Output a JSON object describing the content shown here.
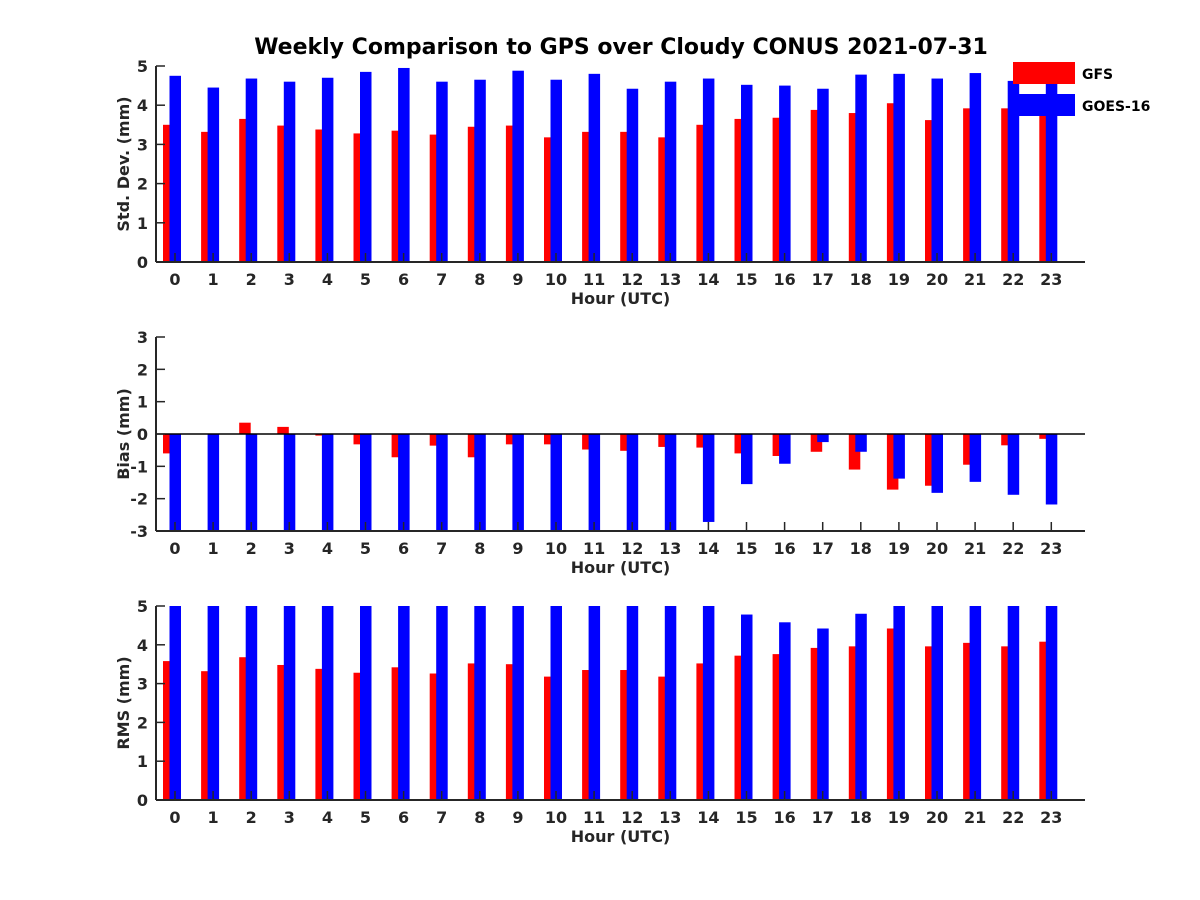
{
  "title": "Weekly Comparison to GPS over Cloudy CONUS 2021-07-31",
  "colors": {
    "GFS": "#ff0000",
    "GOES-16": "#0000ff",
    "axis": "#262626"
  },
  "legend": {
    "placement": "top-right",
    "entries": [
      "GFS",
      "GOES-16"
    ]
  },
  "chart_data": [
    {
      "type": "bar",
      "categories": [
        "0",
        "1",
        "2",
        "3",
        "4",
        "5",
        "6",
        "7",
        "8",
        "9",
        "10",
        "11",
        "12",
        "13",
        "14",
        "15",
        "16",
        "17",
        "18",
        "19",
        "20",
        "21",
        "22",
        "23"
      ],
      "xlabel": "Hour (UTC)",
      "ylabel": "Std. Dev. (mm)",
      "ylim": [
        0,
        5
      ],
      "yticks": [
        0,
        1,
        2,
        3,
        4,
        5
      ],
      "series": [
        {
          "name": "GFS",
          "values": [
            3.5,
            3.32,
            3.65,
            3.48,
            3.38,
            3.28,
            3.35,
            3.25,
            3.45,
            3.48,
            3.18,
            3.32,
            3.32,
            3.18,
            3.5,
            3.65,
            3.68,
            3.88,
            3.8,
            4.05,
            3.62,
            3.92,
            3.92,
            3.75
          ]
        },
        {
          "name": "GOES-16",
          "values": [
            4.75,
            4.45,
            4.68,
            4.6,
            4.7,
            4.85,
            4.95,
            4.6,
            4.65,
            4.88,
            4.65,
            4.8,
            4.42,
            4.6,
            4.68,
            4.52,
            4.5,
            4.42,
            4.78,
            4.8,
            4.68,
            4.82,
            4.62,
            4.72
          ]
        }
      ]
    },
    {
      "type": "bar",
      "categories": [
        "0",
        "1",
        "2",
        "3",
        "4",
        "5",
        "6",
        "7",
        "8",
        "9",
        "10",
        "11",
        "12",
        "13",
        "14",
        "15",
        "16",
        "17",
        "18",
        "19",
        "20",
        "21",
        "22",
        "23"
      ],
      "xlabel": "Hour (UTC)",
      "ylabel": "Bias (mm)",
      "ylim": [
        -3,
        3
      ],
      "yticks": [
        -3,
        -2,
        -1,
        0,
        1,
        2,
        3
      ],
      "series": [
        {
          "name": "GFS",
          "values": [
            -0.6,
            0,
            0.35,
            0.22,
            -0.05,
            -0.32,
            -0.72,
            -0.36,
            -0.72,
            -0.32,
            -0.32,
            -0.48,
            -0.52,
            -0.4,
            -0.42,
            -0.6,
            -0.68,
            -0.55,
            -1.1,
            -1.72,
            -1.6,
            -0.95,
            -0.35,
            -0.15
          ]
        },
        {
          "name": "GOES-16",
          "values": [
            -3,
            -3,
            -3,
            -3,
            -3,
            -3,
            -3,
            -3,
            -3,
            -3,
            -3,
            -3,
            -3,
            -3,
            -2.72,
            -1.55,
            -0.92,
            -0.25,
            -0.55,
            -1.38,
            -1.82,
            -1.48,
            -1.88,
            -2.18
          ]
        }
      ]
    },
    {
      "type": "bar",
      "categories": [
        "0",
        "1",
        "2",
        "3",
        "4",
        "5",
        "6",
        "7",
        "8",
        "9",
        "10",
        "11",
        "12",
        "13",
        "14",
        "15",
        "16",
        "17",
        "18",
        "19",
        "20",
        "21",
        "22",
        "23"
      ],
      "xlabel": "Hour (UTC)",
      "ylabel": "RMS (mm)",
      "ylim": [
        0,
        5
      ],
      "yticks": [
        0,
        1,
        2,
        3,
        4,
        5
      ],
      "series": [
        {
          "name": "GFS",
          "values": [
            3.58,
            3.32,
            3.68,
            3.48,
            3.38,
            3.28,
            3.42,
            3.26,
            3.52,
            3.5,
            3.18,
            3.35,
            3.35,
            3.18,
            3.52,
            3.72,
            3.76,
            3.92,
            3.96,
            4.42,
            3.96,
            4.05,
            3.96,
            4.08
          ]
        },
        {
          "name": "GOES-16",
          "values": [
            5,
            5,
            5,
            5,
            5,
            5,
            5,
            5,
            5,
            5,
            5,
            5,
            5,
            5,
            5,
            4.78,
            4.58,
            4.42,
            4.8,
            5,
            5,
            5,
            5,
            5
          ]
        }
      ]
    }
  ]
}
